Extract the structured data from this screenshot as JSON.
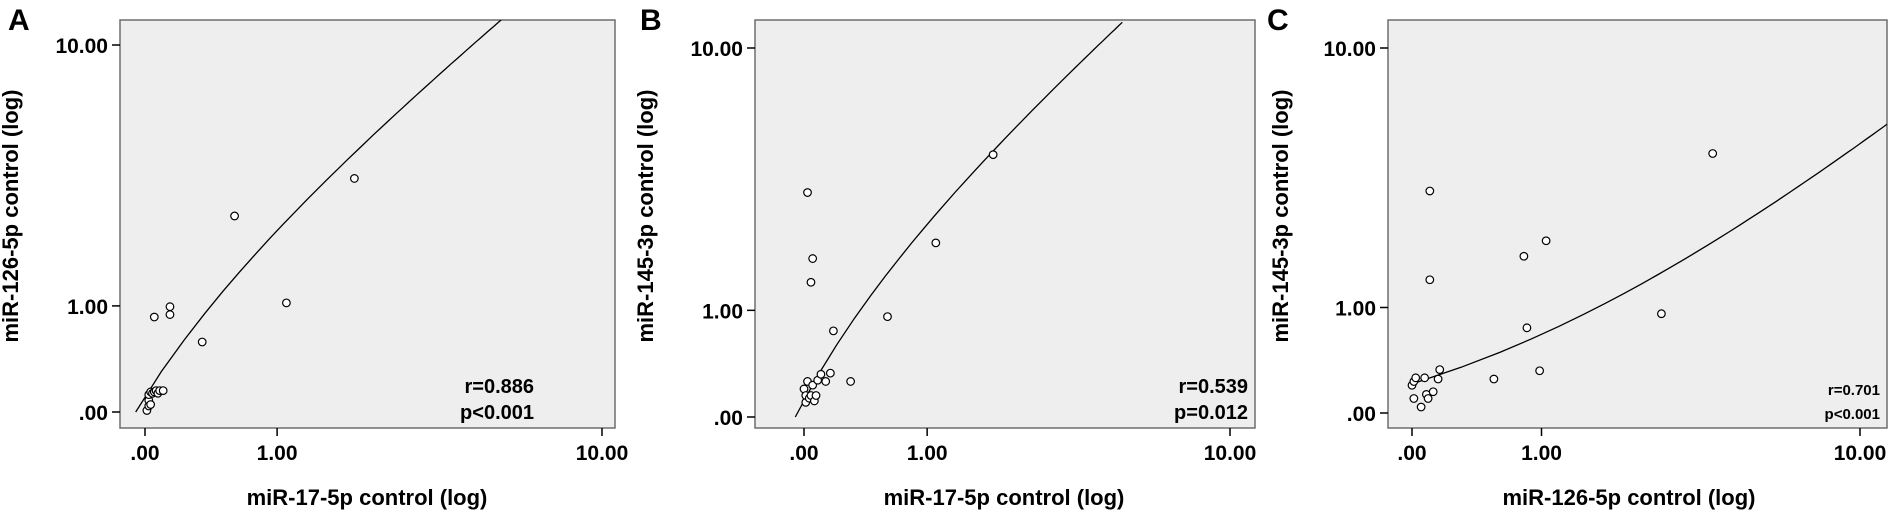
{
  "chart_data": [
    {
      "type": "scatter",
      "panel_label": "A",
      "xlabel": "miR-17-5p control (log)",
      "ylabel": "miR-126-5p control (log)",
      "x_ticks": [
        ".00",
        "1.00",
        "10.00"
      ],
      "y_ticks": [
        ".00",
        "1.00",
        "10.00"
      ],
      "stats": {
        "r": "r=0.886",
        "p": "p<0.001"
      },
      "fit_line": {
        "x": [
          -0.05,
          5.5
        ],
        "y": [
          0.0,
          12.0
        ]
      },
      "points": [
        {
          "x": 0.01,
          "y": 0.01
        },
        {
          "x": 0.02,
          "y": 0.04
        },
        {
          "x": 0.02,
          "y": 0.08
        },
        {
          "x": 0.02,
          "y": 0.12
        },
        {
          "x": 0.03,
          "y": 0.05
        },
        {
          "x": 0.03,
          "y": 0.14
        },
        {
          "x": 0.04,
          "y": 0.13
        },
        {
          "x": 0.05,
          "y": 0.14
        },
        {
          "x": 0.05,
          "y": 0.86
        },
        {
          "x": 0.06,
          "y": 0.15
        },
        {
          "x": 0.07,
          "y": 0.13
        },
        {
          "x": 0.08,
          "y": 0.15
        },
        {
          "x": 0.1,
          "y": 0.15
        },
        {
          "x": 0.14,
          "y": 0.99
        },
        {
          "x": 0.14,
          "y": 0.89
        },
        {
          "x": 0.35,
          "y": 0.58
        },
        {
          "x": 0.6,
          "y": 2.6
        },
        {
          "x": 1.1,
          "y": 1.04
        },
        {
          "x": 2.0,
          "y": 3.6
        }
      ]
    },
    {
      "type": "scatter",
      "panel_label": "B",
      "xlabel": "miR-17-5p control (log)",
      "ylabel": "miR-145-3p control (log)",
      "x_ticks": [
        ".00",
        "1.00",
        "10.00"
      ],
      "y_ticks": [
        ".00",
        "1.00",
        "10.00"
      ],
      "stats": {
        "r": "r=0.539",
        "p": "p=0.012"
      },
      "fit_line": {
        "x": [
          -0.05,
          5.0
        ],
        "y": [
          0.0,
          12.0
        ]
      },
      "points": [
        {
          "x": 0.0,
          "y": 0.2
        },
        {
          "x": 0.01,
          "y": 0.1
        },
        {
          "x": 0.01,
          "y": 0.15
        },
        {
          "x": 0.02,
          "y": 0.26
        },
        {
          "x": 0.02,
          "y": 3.3
        },
        {
          "x": 0.03,
          "y": 0.13
        },
        {
          "x": 0.04,
          "y": 0.15
        },
        {
          "x": 0.04,
          "y": 1.4
        },
        {
          "x": 0.05,
          "y": 0.23
        },
        {
          "x": 0.05,
          "y": 1.8
        },
        {
          "x": 0.06,
          "y": 0.11
        },
        {
          "x": 0.07,
          "y": 0.15
        },
        {
          "x": 0.08,
          "y": 0.27
        },
        {
          "x": 0.1,
          "y": 0.32
        },
        {
          "x": 0.13,
          "y": 0.26
        },
        {
          "x": 0.16,
          "y": 0.33
        },
        {
          "x": 0.18,
          "y": 0.75
        },
        {
          "x": 0.3,
          "y": 0.26
        },
        {
          "x": 0.6,
          "y": 0.92
        },
        {
          "x": 1.1,
          "y": 2.1
        },
        {
          "x": 1.9,
          "y": 4.5
        }
      ]
    },
    {
      "type": "scatter",
      "panel_label": "C",
      "xlabel": "miR-126-5p control (log)",
      "ylabel": "miR-145-3p control (log)",
      "x_ticks": [
        ".00",
        "1.00",
        "10.00"
      ],
      "y_ticks": [
        ".00",
        "1.00",
        "10.00"
      ],
      "stats": {
        "r": "r=0.701",
        "p": "p<0.001"
      },
      "fit_line": {
        "x": [
          0.0,
          12.0
        ],
        "y": [
          0.21,
          5.8
        ]
      },
      "points": [
        {
          "x": 0.0,
          "y": 0.2
        },
        {
          "x": 0.01,
          "y": 0.1
        },
        {
          "x": 0.01,
          "y": 0.23
        },
        {
          "x": 0.02,
          "y": 0.26
        },
        {
          "x": 0.05,
          "y": 0.04
        },
        {
          "x": 0.07,
          "y": 0.26
        },
        {
          "x": 0.08,
          "y": 0.13
        },
        {
          "x": 0.09,
          "y": 0.1
        },
        {
          "x": 0.1,
          "y": 3.3
        },
        {
          "x": 0.1,
          "y": 1.4
        },
        {
          "x": 0.12,
          "y": 0.15
        },
        {
          "x": 0.15,
          "y": 0.25
        },
        {
          "x": 0.16,
          "y": 0.33
        },
        {
          "x": 0.55,
          "y": 0.25
        },
        {
          "x": 0.82,
          "y": 1.8
        },
        {
          "x": 0.85,
          "y": 0.75
        },
        {
          "x": 0.98,
          "y": 0.32
        },
        {
          "x": 1.05,
          "y": 2.1
        },
        {
          "x": 2.8,
          "y": 0.92
        },
        {
          "x": 4.0,
          "y": 4.5
        }
      ]
    }
  ]
}
